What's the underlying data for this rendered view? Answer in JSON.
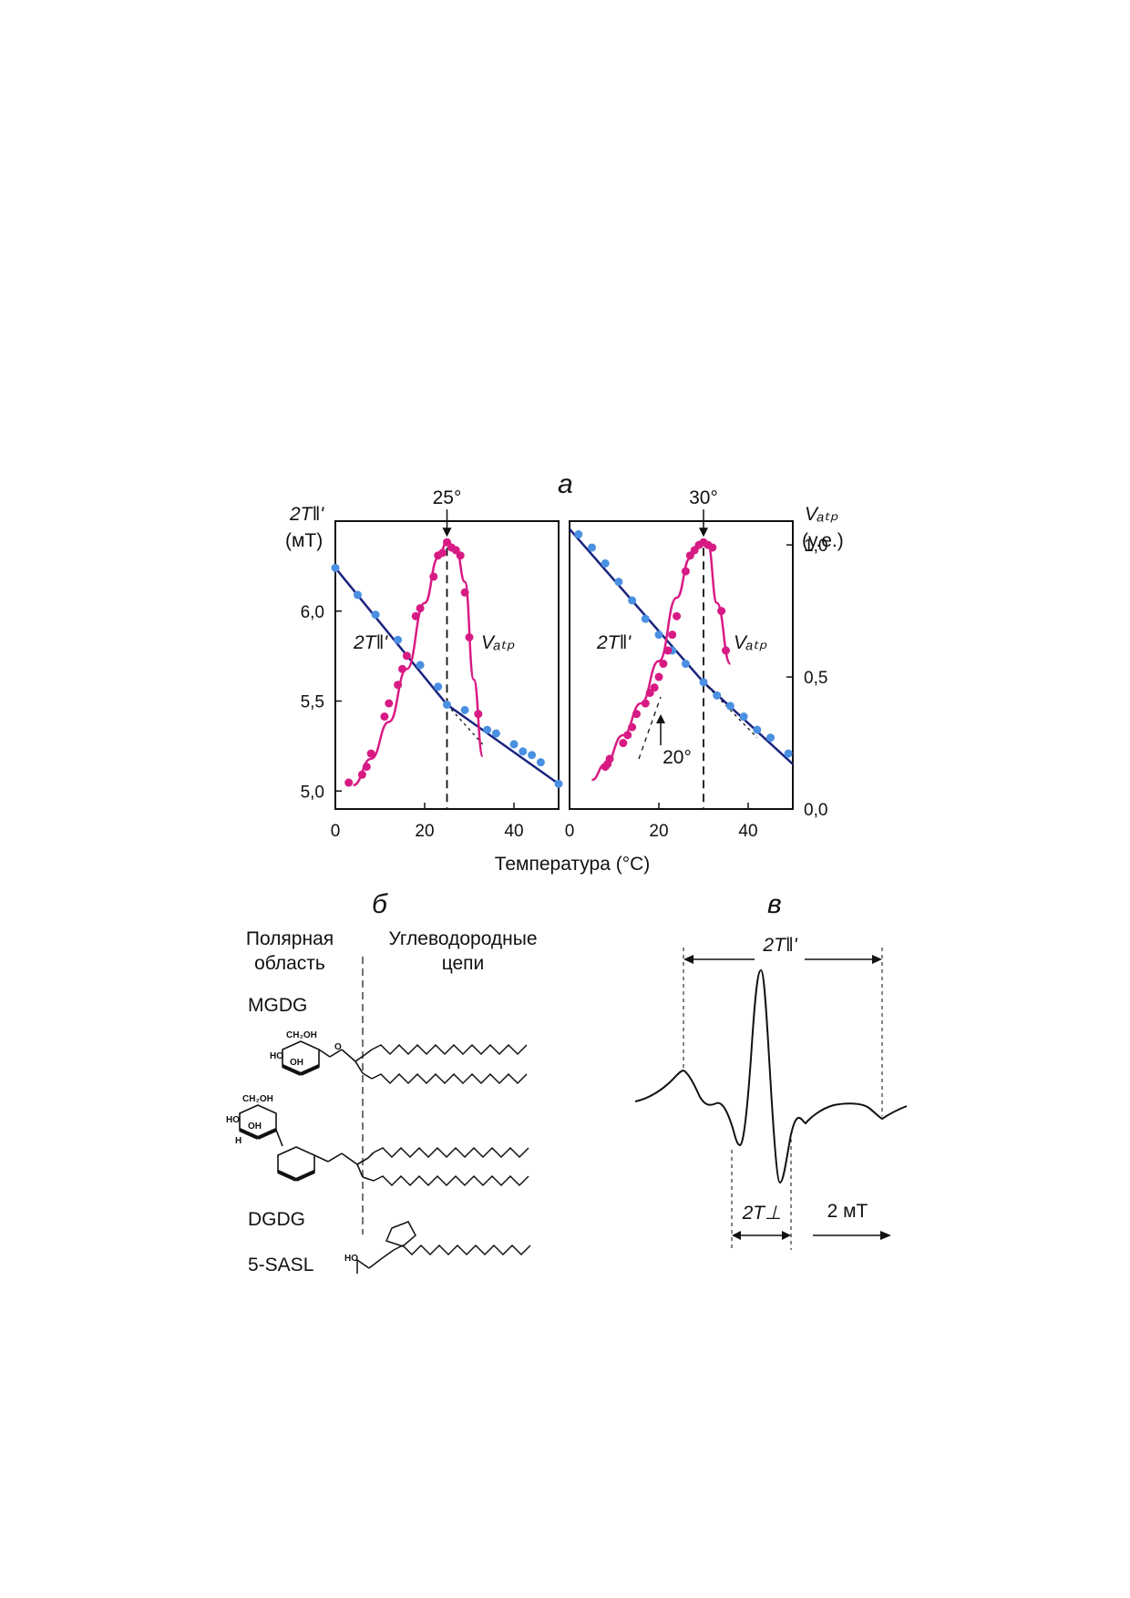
{
  "panel_letters": {
    "a": "а",
    "b": "б",
    "c": "в"
  },
  "colors": {
    "blue_line": "#1a237e",
    "blue_points": "#4a90e2",
    "pink": "#d81b84",
    "frame": "#111111"
  },
  "chart_data": [
    {
      "type": "scatter",
      "panel": "left",
      "xlabel": "Температура (°C)",
      "xlim": [
        0,
        50
      ],
      "xticks": [
        0,
        20,
        40
      ],
      "ylim": [
        4.9,
        6.5
      ],
      "yticks": [
        5.0,
        5.5,
        6.0
      ],
      "ytick_labels": [
        "5,0",
        "5,5",
        "6,0"
      ],
      "ylabel": "2T‖' (мТ)",
      "grid": false,
      "transition_label": "25°",
      "transition_temp": 25,
      "series": [
        {
          "name": "2T‖'",
          "axis": "left",
          "line": [
            [
              0,
              6.24
            ],
            [
              25,
              5.48
            ],
            [
              50,
              5.04
            ]
          ],
          "points": [
            [
              0,
              6.24
            ],
            [
              5,
              6.09
            ],
            [
              9,
              5.98
            ],
            [
              14,
              5.84
            ],
            [
              19,
              5.7
            ],
            [
              23,
              5.58
            ],
            [
              25,
              5.48
            ],
            [
              29,
              5.45
            ],
            [
              34,
              5.34
            ],
            [
              36,
              5.32
            ],
            [
              40,
              5.26
            ],
            [
              42,
              5.22
            ],
            [
              44,
              5.2
            ],
            [
              46,
              5.16
            ],
            [
              50,
              5.04
            ]
          ],
          "extrapolation": [
            [
              25,
              5.48
            ],
            [
              33,
              5.26
            ]
          ]
        },
        {
          "name": "Vₐₜₚ",
          "axis": "right",
          "curve": [
            [
              4,
              0.09
            ],
            [
              8,
              0.19
            ],
            [
              12,
              0.33
            ],
            [
              16,
              0.53
            ],
            [
              20,
              0.78
            ],
            [
              23,
              0.95
            ],
            [
              25,
              1.01
            ],
            [
              27,
              0.99
            ],
            [
              29,
              0.86
            ],
            [
              31,
              0.49
            ],
            [
              33,
              0.2
            ]
          ],
          "points": [
            [
              3,
              0.1
            ],
            [
              6,
              0.13
            ],
            [
              7,
              0.16
            ],
            [
              8,
              0.21
            ],
            [
              11,
              0.35
            ],
            [
              12,
              0.4
            ],
            [
              14,
              0.47
            ],
            [
              15,
              0.53
            ],
            [
              16,
              0.58
            ],
            [
              18,
              0.73
            ],
            [
              19,
              0.76
            ],
            [
              22,
              0.88
            ],
            [
              23,
              0.96
            ],
            [
              24,
              0.97
            ],
            [
              25,
              1.01
            ],
            [
              26,
              0.99
            ],
            [
              27,
              0.98
            ],
            [
              28,
              0.96
            ],
            [
              29,
              0.82
            ],
            [
              30,
              0.65
            ],
            [
              32,
              0.36
            ]
          ]
        }
      ]
    },
    {
      "type": "scatter",
      "panel": "right",
      "xlabel": "Температура (°C)",
      "xlim": [
        0,
        50
      ],
      "xticks": [
        0,
        20,
        40
      ],
      "ylim": [
        0.0,
        1.09
      ],
      "yticks": [
        0.0,
        0.5,
        1.0
      ],
      "ytick_labels": [
        "0,0",
        "0,5",
        "1,0"
      ],
      "ylabel": "Vₐₜₚ (у.е.)",
      "grid": false,
      "transition_label": "30°",
      "transition_temp": 30,
      "lower_transition_label": "20°",
      "lower_transition_temp": 20,
      "series": [
        {
          "name": "2T‖'",
          "axis": "2T",
          "line": [
            [
              0,
              1.06
            ],
            [
              30,
              0.48
            ],
            [
              50,
              0.17
            ]
          ],
          "points": [
            [
              2,
              1.04
            ],
            [
              5,
              0.99
            ],
            [
              8,
              0.93
            ],
            [
              11,
              0.86
            ],
            [
              14,
              0.79
            ],
            [
              17,
              0.72
            ],
            [
              20,
              0.66
            ],
            [
              23,
              0.6
            ],
            [
              26,
              0.55
            ],
            [
              30,
              0.48
            ],
            [
              33,
              0.43
            ],
            [
              36,
              0.39
            ],
            [
              39,
              0.35
            ],
            [
              42,
              0.3
            ],
            [
              45,
              0.27
            ],
            [
              49,
              0.21
            ]
          ],
          "extrapolation": [
            [
              30,
              0.48
            ],
            [
              42,
              0.27
            ]
          ]
        },
        {
          "name": "Vₐₜₚ",
          "axis": "right",
          "curve": [
            [
              5,
              0.11
            ],
            [
              8,
              0.17
            ],
            [
              12,
              0.28
            ],
            [
              16,
              0.4
            ],
            [
              20,
              0.56
            ],
            [
              24,
              0.8
            ],
            [
              27,
              0.95
            ],
            [
              29,
              1.01
            ],
            [
              31,
              1.0
            ],
            [
              33,
              0.78
            ],
            [
              36,
              0.55
            ]
          ],
          "points": [
            [
              8,
              0.16
            ],
            [
              8.5,
              0.17
            ],
            [
              9,
              0.19
            ],
            [
              12,
              0.25
            ],
            [
              13,
              0.28
            ],
            [
              14,
              0.31
            ],
            [
              15,
              0.36
            ],
            [
              17,
              0.4
            ],
            [
              18,
              0.44
            ],
            [
              19,
              0.46
            ],
            [
              20,
              0.5
            ],
            [
              21,
              0.55
            ],
            [
              22,
              0.6
            ],
            [
              23,
              0.66
            ],
            [
              24,
              0.73
            ],
            [
              26,
              0.9
            ],
            [
              27,
              0.96
            ],
            [
              28,
              0.98
            ],
            [
              29,
              1.0
            ],
            [
              30,
              1.01
            ],
            [
              31,
              1.0
            ],
            [
              32,
              0.99
            ],
            [
              34,
              0.75
            ],
            [
              35,
              0.6
            ]
          ]
        }
      ]
    }
  ],
  "left_axis": {
    "name": "2T‖'",
    "unit": "(мТ)"
  },
  "right_axis": {
    "name": "Vₐₜₚ",
    "unit": "(у.е.)"
  },
  "series_labels": {
    "two_t": "2T‖'",
    "vatp": "Vₐₜₚ"
  },
  "x_axis_title": "Температура (°C)",
  "panel_b": {
    "polar": "Полярная\nобласть",
    "hydrocarbon": "Углеводородные\nцепи",
    "molecules": [
      "MGDG",
      "DGDG",
      "5-SASL"
    ],
    "group_labels": [
      "CH₂OH",
      "OH",
      "HO",
      "H",
      "OH",
      "H",
      "O"
    ]
  },
  "panel_c": {
    "width_label_parallel": "2T‖'",
    "width_label_perp": "2T⊥",
    "scale_label": "2 мТ"
  }
}
